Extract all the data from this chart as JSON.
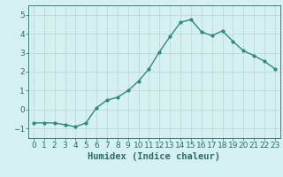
{
  "x": [
    0,
    1,
    2,
    3,
    4,
    5,
    6,
    7,
    8,
    9,
    10,
    11,
    12,
    13,
    14,
    15,
    16,
    17,
    18,
    19,
    20,
    21,
    22,
    23
  ],
  "y": [
    -0.7,
    -0.7,
    -0.7,
    -0.8,
    -0.9,
    -0.7,
    0.1,
    0.5,
    0.65,
    1.0,
    1.5,
    2.15,
    3.05,
    3.85,
    4.6,
    4.75,
    4.1,
    3.9,
    4.15,
    3.6,
    3.1,
    2.85,
    2.55,
    2.15
  ],
  "line_color": "#2e8b7a",
  "marker": "o",
  "marker_size": 2.0,
  "bg_color": "#d5f0f0",
  "grid_color": "#c0d8d8",
  "xlabel": "Humidex (Indice chaleur)",
  "xlim": [
    -0.5,
    23.5
  ],
  "ylim": [
    -1.5,
    5.5
  ],
  "yticks": [
    -1,
    0,
    1,
    2,
    3,
    4,
    5
  ],
  "xticks": [
    0,
    1,
    2,
    3,
    4,
    5,
    6,
    7,
    8,
    9,
    10,
    11,
    12,
    13,
    14,
    15,
    16,
    17,
    18,
    19,
    20,
    21,
    22,
    23
  ],
  "tick_color": "#2e6b6b",
  "line_width": 1.0,
  "font_size": 6.5,
  "xlabel_fontsize": 7.5
}
